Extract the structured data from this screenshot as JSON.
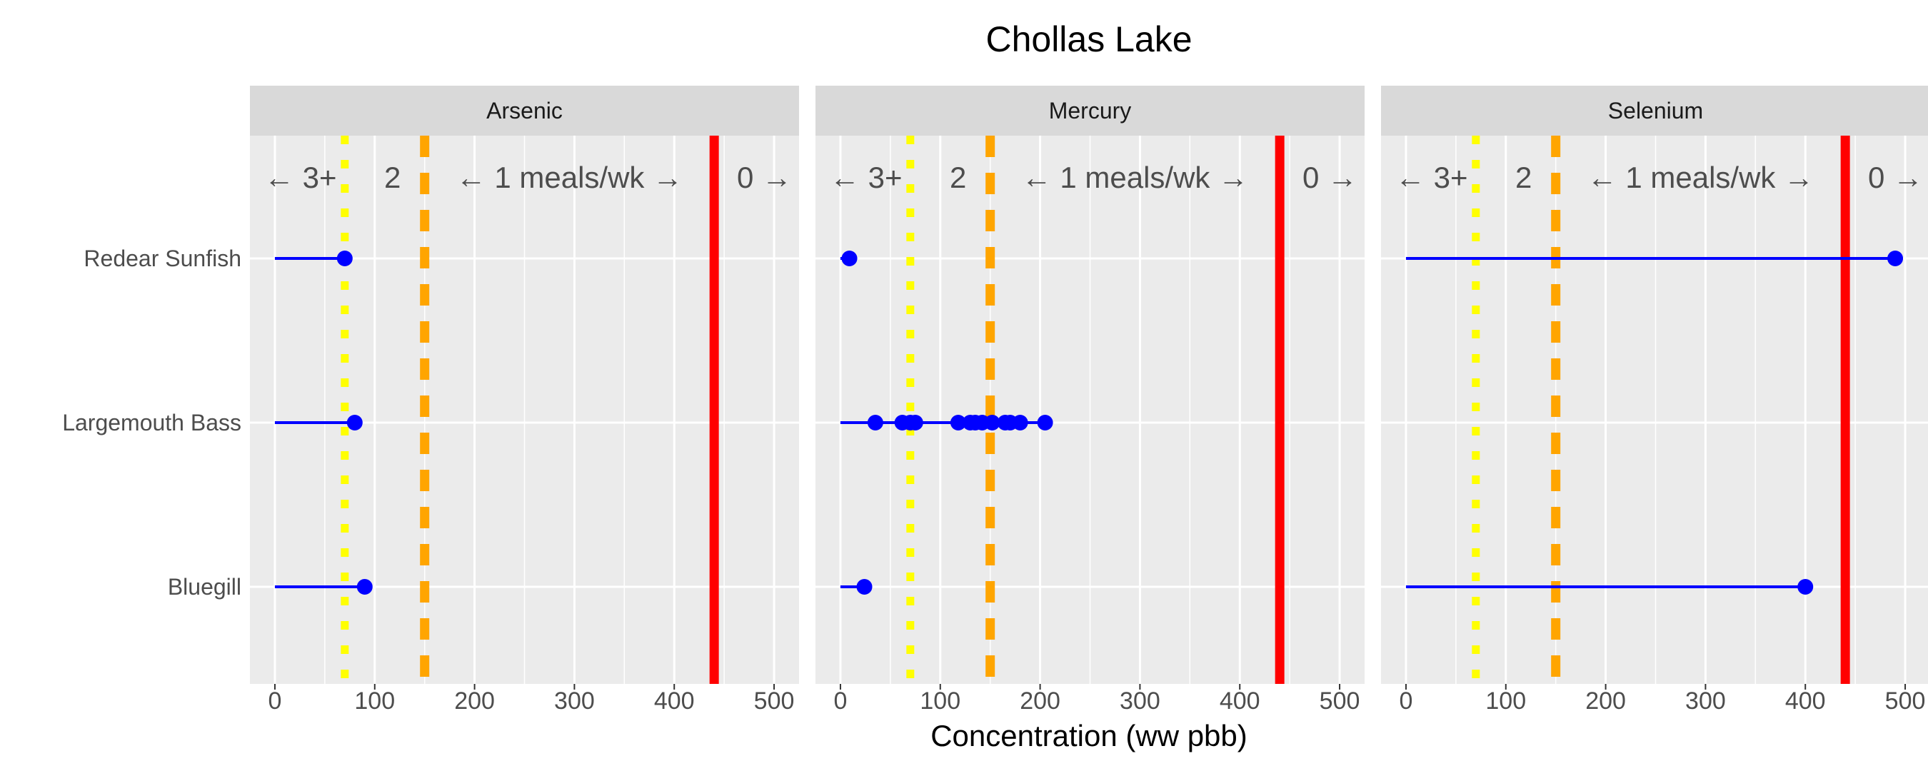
{
  "chart_data": {
    "type": "scatter",
    "title": "Chollas Lake",
    "xlabel": "Concentration (ww pbb)",
    "xlim": [
      -25,
      525
    ],
    "x_ticks": [
      "0",
      "100",
      "200",
      "300",
      "400",
      "500"
    ],
    "y_categories": [
      "Redear Sunfish",
      "Largemouth Bass",
      "Bluegill"
    ],
    "band_labels": {
      "left": "← 3+",
      "two": "2",
      "one": "← 1 meals/wk →",
      "zero": "0 →"
    },
    "thresholds": [
      {
        "value": 70,
        "color": "#ffff00",
        "style": "dotted"
      },
      {
        "value": 150,
        "color": "#ffa500",
        "style": "dashed"
      },
      {
        "value": 440,
        "color": "#ff0000",
        "style": "solid"
      }
    ],
    "panels": [
      {
        "label": "Arsenic",
        "series": [
          {
            "species": "Redear Sunfish",
            "points": [
              70
            ]
          },
          {
            "species": "Largemouth Bass",
            "points": [
              80
            ]
          },
          {
            "species": "Bluegill",
            "points": [
              90
            ]
          }
        ]
      },
      {
        "label": "Mercury",
        "series": [
          {
            "species": "Redear Sunfish",
            "points": [
              9
            ]
          },
          {
            "species": "Largemouth Bass",
            "points": [
              35,
              62,
              70,
              75,
              118,
              130,
              135,
              142,
              152,
              165,
              170,
              180,
              205
            ]
          },
          {
            "species": "Bluegill",
            "points": [
              24
            ]
          }
        ]
      },
      {
        "label": "Selenium",
        "series": [
          {
            "species": "Redear Sunfish",
            "points": [
              490
            ]
          },
          {
            "species": "Largemouth Bass",
            "points": []
          },
          {
            "species": "Bluegill",
            "points": [
              400
            ]
          }
        ]
      }
    ],
    "colors": {
      "point": "#0000ff",
      "segment": "#0000ff",
      "panel_bg": "#ebebeb",
      "strip_bg": "#d9d9d9",
      "grid": "#ffffff"
    }
  }
}
